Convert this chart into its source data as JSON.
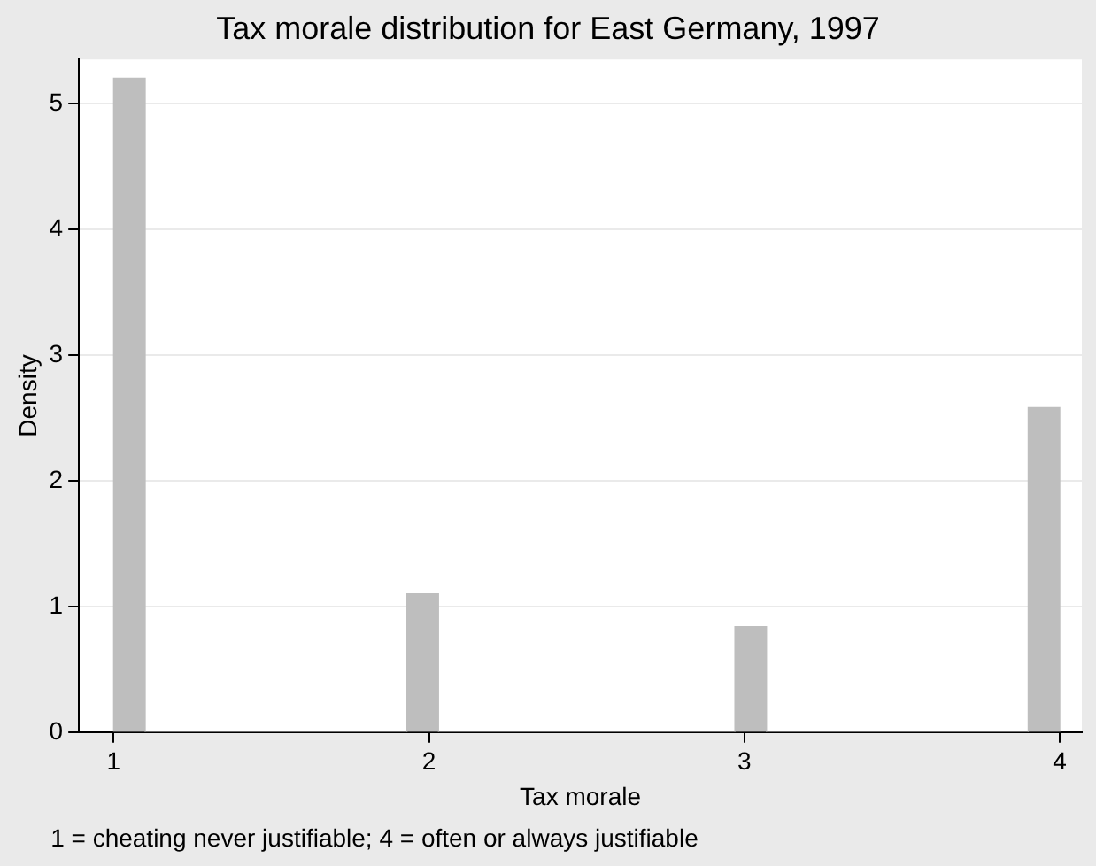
{
  "chart_data": {
    "type": "histogram",
    "title": "Tax morale distribution for East Germany, 1997",
    "xlabel": "Tax morale",
    "ylabel": "Density",
    "annotations": [
      "1 = cheating never justifiable; 4 = often or always justifiable"
    ],
    "bins": [
      1.0,
      1.1,
      1.93,
      2.03,
      2.97,
      3.07,
      3.9,
      4.0
    ],
    "values": [
      5.2,
      0,
      1.1,
      0,
      0.84,
      0,
      2.58
    ],
    "color": "#bebebe",
    "xlim": [
      0.89,
      4.07
    ],
    "xticks": [
      1,
      2,
      3,
      4
    ],
    "ylim": [
      0,
      5.35
    ],
    "yticks": [
      0,
      1,
      2,
      3,
      4,
      5
    ],
    "grid": "y"
  }
}
